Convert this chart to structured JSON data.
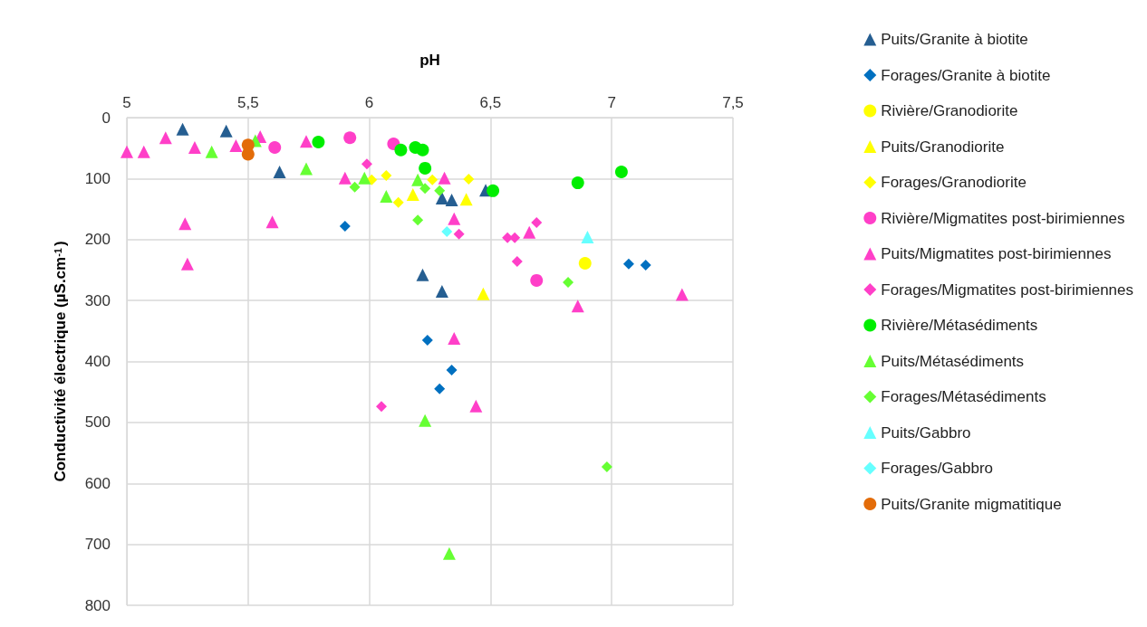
{
  "chart_data": {
    "type": "scatter",
    "xlabel": "pH",
    "ylabel": "Conductivité électrique (µS.cm$^{-1}$)",
    "xlim": [
      5,
      7.5
    ],
    "xticks": [
      5,
      {
        "value": 5.5,
        "label": "5,5"
      },
      6,
      {
        "value": 6.5,
        "label": "6,5"
      },
      7,
      {
        "value": 7.5,
        "label": "7,5"
      }
    ],
    "ylim": [
      800,
      0
    ],
    "yticks": [
      0,
      100,
      200,
      300,
      400,
      500,
      600,
      700,
      800
    ],
    "grid": true,
    "legend": "right",
    "series": [
      {
        "name": "Puits/Granite à biotite",
        "color": "#255e91",
        "marker": "triangle",
        "x": [
          5.23,
          5.41,
          5.63,
          6.3,
          6.34,
          6.48,
          6.22,
          6.3
        ],
        "values": [
          19,
          22,
          89,
          132,
          135,
          119,
          258,
          285
        ]
      },
      {
        "name": "Forages/Granite à biotite",
        "color": "#0070c0",
        "marker": "diamond",
        "x": [
          5.9,
          7.07,
          7.14,
          6.24,
          6.34,
          6.29
        ],
        "values": [
          178,
          240,
          242,
          365,
          414,
          445
        ]
      },
      {
        "name": "Rivière/Granodiorite",
        "color": "#ffff00",
        "marker": "circle",
        "x": [
          6.89
        ],
        "values": [
          239
        ]
      },
      {
        "name": "Puits/Granodiorite",
        "color": "#ffff00",
        "marker": "triangle",
        "x": [
          6.18,
          6.4,
          6.47
        ],
        "values": [
          126,
          134,
          289
        ]
      },
      {
        "name": "Forages/Granodiorite",
        "color": "#ffff00",
        "marker": "diamond",
        "x": [
          6.01,
          6.07,
          6.12,
          6.26,
          6.41
        ],
        "values": [
          102,
          95,
          139,
          102,
          101
        ]
      },
      {
        "name": "Rivière/Migmatites post-birimiennes",
        "color": "#ff3fc8",
        "marker": "circle",
        "x": [
          5.61,
          5.92,
          6.1,
          6.69
        ],
        "values": [
          49,
          33,
          43,
          267
        ]
      },
      {
        "name": "Puits/Migmatites post-birimiennes",
        "color": "#ff3fc8",
        "marker": "triangle",
        "x": [
          5.0,
          5.07,
          5.16,
          5.28,
          5.45,
          5.55,
          5.74,
          5.24,
          5.25,
          5.6,
          5.9,
          6.31,
          6.35,
          6.66,
          7.29,
          6.86,
          6.35,
          6.44
        ],
        "values": [
          56,
          56,
          33,
          49,
          46,
          31,
          39,
          174,
          240,
          171,
          99,
          99,
          166,
          188,
          290,
          309,
          362,
          473
        ]
      },
      {
        "name": "Forages/Migmatites post-birimiennes",
        "color": "#ff3fc8",
        "marker": "diamond",
        "x": [
          5.99,
          6.57,
          6.6,
          6.69,
          6.61,
          6.37,
          6.05
        ],
        "values": [
          76,
          197,
          197,
          172,
          236,
          191,
          474
        ]
      },
      {
        "name": "Rivière/Métasédiments",
        "color": "#00ee00",
        "marker": "circle",
        "x": [
          5.79,
          6.13,
          6.19,
          6.22,
          6.23,
          6.51,
          6.86,
          7.04
        ],
        "values": [
          40,
          53,
          49,
          53,
          83,
          120,
          107,
          89
        ]
      },
      {
        "name": "Puits/Métasédiments",
        "color": "#66ff33",
        "marker": "triangle",
        "x": [
          5.35,
          5.53,
          5.74,
          5.98,
          6.07,
          6.2,
          6.23,
          6.33
        ],
        "values": [
          56,
          38,
          84,
          99,
          129,
          102,
          497,
          715
        ]
      },
      {
        "name": "Forages/Métasédiments",
        "color": "#66ff33",
        "marker": "diamond",
        "x": [
          5.94,
          6.23,
          6.29,
          6.2,
          6.82,
          6.98
        ],
        "values": [
          114,
          116,
          120,
          168,
          270,
          573
        ]
      },
      {
        "name": "Puits/Gabbro",
        "color": "#66ffff",
        "marker": "triangle",
        "x": [
          6.9
        ],
        "values": [
          196
        ]
      },
      {
        "name": "Forages/Gabbro",
        "color": "#66ffff",
        "marker": "diamond",
        "x": [
          6.32
        ],
        "values": [
          187
        ]
      },
      {
        "name": "Puits/Granite migmatitique",
        "color": "#e36c09",
        "marker": "circle",
        "x": [
          5.5,
          5.5
        ],
        "values": [
          45,
          60
        ]
      }
    ]
  }
}
